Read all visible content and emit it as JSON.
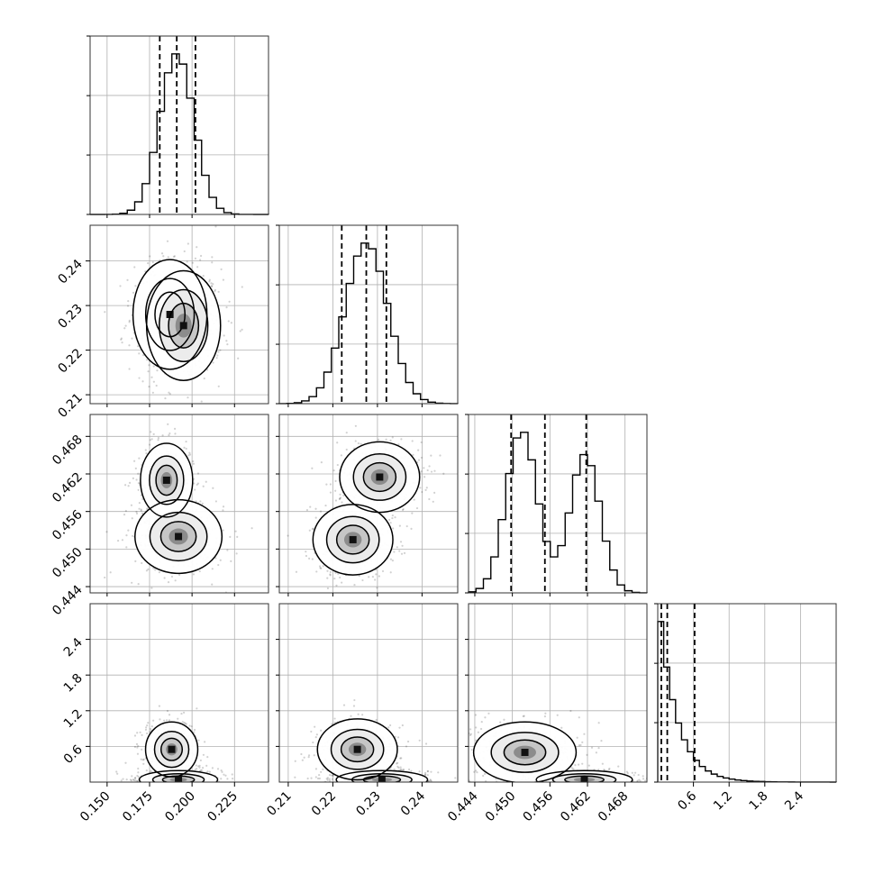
{
  "chart_data": {
    "type": "corner",
    "n_params": 4,
    "grid": true,
    "params": [
      {
        "index": 0,
        "range": [
          0.14,
          0.245
        ],
        "ticks": [
          0.15,
          0.175,
          0.2,
          0.225
        ],
        "tick_labels": [
          "0.150",
          "0.175",
          "0.200",
          "0.225"
        ],
        "quantiles": [
          0.181,
          0.191,
          0.202
        ],
        "dist": {
          "type": "normal",
          "mean": 0.191,
          "sd": 0.01
        }
      },
      {
        "index": 1,
        "range": [
          0.208,
          0.248
        ],
        "ticks": [
          0.21,
          0.22,
          0.23,
          0.24
        ],
        "tick_labels": [
          "0.21",
          "0.22",
          "0.23",
          "0.24"
        ],
        "quantiles": [
          0.222,
          0.2275,
          0.232
        ],
        "dist": {
          "type": "normal",
          "mean": 0.2275,
          "sd": 0.0048
        }
      },
      {
        "index": 2,
        "range": [
          0.443,
          0.4715
        ],
        "ticks": [
          0.444,
          0.45,
          0.456,
          0.462,
          0.468
        ],
        "tick_labels": [
          "0.444",
          "0.450",
          "0.456",
          "0.462",
          "0.468"
        ],
        "quantiles": [
          0.4498,
          0.4552,
          0.4618
        ],
        "dist": {
          "type": "mixture",
          "components": [
            {
              "weight": 0.55,
              "mean": 0.4515,
              "sd": 0.0025
            },
            {
              "weight": 0.45,
              "mean": 0.4616,
              "sd": 0.0024
            }
          ]
        }
      },
      {
        "index": 3,
        "range": [
          0.0,
          3.0
        ],
        "ticks": [
          0.6,
          1.2,
          1.8,
          2.4
        ],
        "tick_labels": [
          "0.6",
          "1.2",
          "1.8",
          "2.4"
        ],
        "quantiles": [
          0.06,
          0.16,
          0.62
        ],
        "dist": {
          "type": "exponential",
          "scale": 0.3
        }
      }
    ],
    "density_blobs": [
      {
        "x": 0,
        "y": 1,
        "components": [
          {
            "mean": [
              0.187,
              0.228
            ],
            "sd": [
              0.0085,
              0.0048
            ]
          },
          {
            "mean": [
              0.195,
              0.2255
            ],
            "sd": [
              0.0085,
              0.0048
            ]
          }
        ]
      },
      {
        "x": 0,
        "y": 2,
        "components": [
          {
            "mean": [
              0.185,
              0.461
            ],
            "sd": [
              0.006,
              0.0023
            ]
          },
          {
            "mean": [
              0.192,
              0.452
            ],
            "sd": [
              0.01,
              0.0023
            ]
          }
        ]
      },
      {
        "x": 1,
        "y": 2,
        "components": [
          {
            "mean": [
              0.2245,
              0.4515
            ],
            "sd": [
              0.0035,
              0.0022
            ]
          },
          {
            "mean": [
              0.2305,
              0.4615
            ],
            "sd": [
              0.0035,
              0.0022
            ]
          }
        ]
      },
      {
        "x": 0,
        "y": 3,
        "components": [
          {
            "mean": [
              0.188,
              0.55
            ],
            "sd": [
              0.006,
              0.18
            ]
          },
          {
            "mean": [
              0.192,
              0.04
            ],
            "sd": [
              0.009,
              0.06
            ]
          }
        ]
      },
      {
        "x": 1,
        "y": 3,
        "components": [
          {
            "mean": [
              0.2255,
              0.55
            ],
            "sd": [
              0.0035,
              0.2
            ]
          },
          {
            "mean": [
              0.231,
              0.04
            ],
            "sd": [
              0.004,
              0.06
            ]
          }
        ]
      },
      {
        "x": 2,
        "y": 3,
        "components": [
          {
            "mean": [
              0.452,
              0.5
            ],
            "sd": [
              0.0032,
              0.2
            ]
          },
          {
            "mean": [
              0.4615,
              0.04
            ],
            "sd": [
              0.003,
              0.06
            ]
          }
        ]
      }
    ]
  }
}
